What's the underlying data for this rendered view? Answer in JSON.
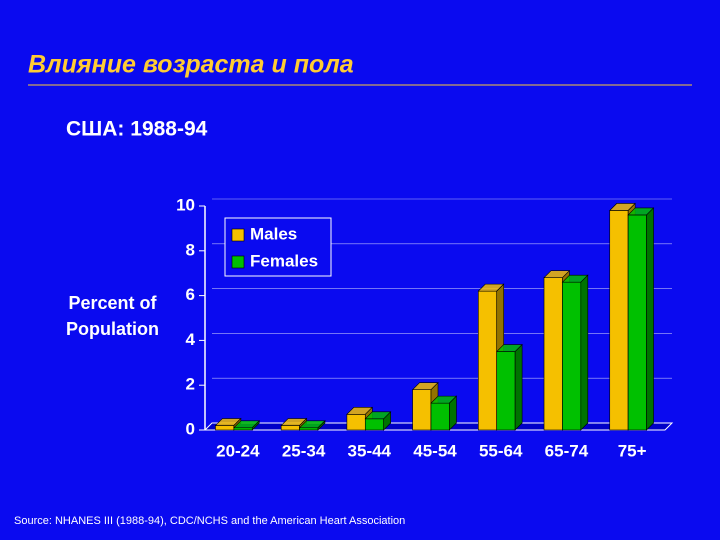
{
  "chart_data": {
    "type": "bar",
    "title": "Влияние возраста и пола",
    "subtitle": "США:  1988-94",
    "ylabel": "Percent of Population",
    "source": "Source:  NHANES III (1988-94), CDC/NCHS and the American Heart Association",
    "categories": [
      "20-24",
      "25-34",
      "35-44",
      "45-54",
      "55-64",
      "65-74",
      "75+"
    ],
    "series": [
      {
        "name": "Males",
        "color": "#f5c000",
        "values": [
          0.2,
          0.2,
          0.7,
          1.8,
          6.2,
          6.8,
          9.8
        ]
      },
      {
        "name": "Females",
        "color": "#00c000",
        "values": [
          0.1,
          0.1,
          0.5,
          1.2,
          3.5,
          6.6,
          9.6
        ]
      }
    ],
    "ylim": [
      0,
      10
    ],
    "yticks": [
      0,
      2,
      4,
      6,
      8,
      10
    ],
    "grid": true,
    "legend": "top-left"
  }
}
